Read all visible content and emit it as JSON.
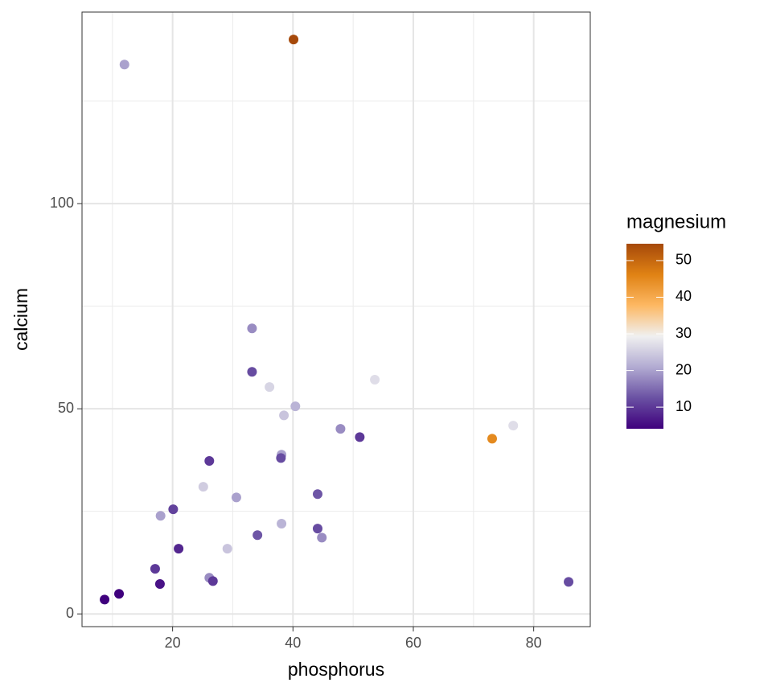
{
  "chart_data": {
    "type": "scatter",
    "x_label": "phosphorus",
    "y_label": "calcium",
    "color_label": "magnesium",
    "x": [
      40.1,
      12.0,
      33.2,
      33.2,
      36.1,
      53.6,
      40.4,
      38.5,
      47.9,
      51.1,
      73.1,
      76.6,
      26.1,
      38.1,
      38.0,
      25.1,
      30.6,
      44.1,
      20.1,
      18.0,
      38.1,
      34.1,
      44.1,
      44.8,
      21.0,
      29.1,
      17.1,
      17.9,
      26.1,
      26.7,
      11.1,
      8.7,
      85.8
    ],
    "y": [
      140.0,
      133.9,
      69.6,
      59.0,
      55.3,
      57.1,
      50.6,
      48.4,
      45.1,
      43.1,
      42.7,
      45.9,
      37.3,
      38.8,
      38.0,
      31.0,
      28.4,
      29.2,
      25.5,
      23.9,
      22.0,
      19.2,
      20.8,
      18.6,
      15.9,
      15.9,
      11.0,
      7.3,
      8.8,
      8.0,
      4.9,
      3.5,
      7.8
    ],
    "color_values": [
      55,
      20,
      18,
      12,
      26,
      27,
      22,
      24,
      18,
      10,
      45,
      27,
      10,
      20,
      12,
      25,
      20,
      13,
      11,
      20,
      22,
      13,
      12,
      18,
      8,
      24,
      10,
      6,
      18,
      10,
      4,
      3,
      12
    ],
    "xlim": [
      4.95,
      89.4
    ],
    "ylim": [
      -3.1,
      146.7
    ],
    "xticks": [
      20,
      40,
      60,
      80
    ],
    "yticks": [
      0,
      50,
      100
    ],
    "x_minor_grid": [
      10,
      30,
      50,
      70
    ],
    "y_minor_grid": [
      25,
      75,
      125
    ],
    "grid": true,
    "colorscale": {
      "colors": [
        "#3f007d",
        "#6a51a3",
        "#b2abd2",
        "#f0f0f0",
        "#fdb863",
        "#e08214",
        "#a6490a"
      ],
      "lim": [
        4.1,
        54.6
      ],
      "ticks": [
        10,
        20,
        30,
        40,
        50
      ]
    },
    "legend_position": "right"
  }
}
